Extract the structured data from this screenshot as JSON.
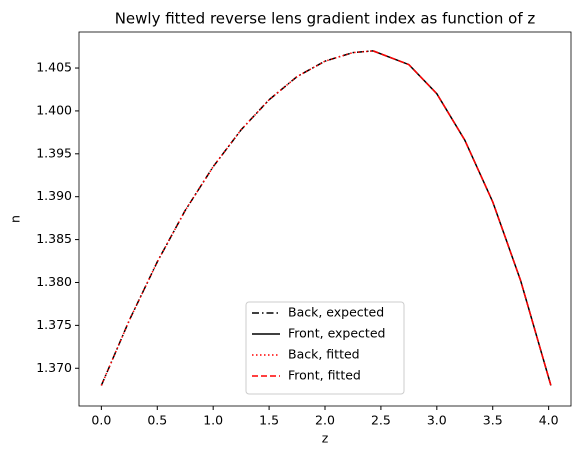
{
  "chart_data": {
    "type": "line",
    "title": "Newly fitted reverse lens gradient index as function of z",
    "xlabel": "z",
    "ylabel": "n",
    "xlim": [
      -0.2,
      4.2
    ],
    "ylim": [
      1.3656,
      1.4092
    ],
    "xticks": [
      {
        "value": 0,
        "label": "0.0"
      },
      {
        "value": 0.5,
        "label": "0.5"
      },
      {
        "value": 1,
        "label": "1.0"
      },
      {
        "value": 1.5,
        "label": "1.5"
      },
      {
        "value": 2,
        "label": "2.0"
      },
      {
        "value": 2.5,
        "label": "2.5"
      },
      {
        "value": 3,
        "label": "3.0"
      },
      {
        "value": 3.5,
        "label": "3.5"
      },
      {
        "value": 4,
        "label": "4.0"
      }
    ],
    "yticks": [
      {
        "value": 1.37,
        "label": "1.370"
      },
      {
        "value": 1.375,
        "label": "1.375"
      },
      {
        "value": 1.38,
        "label": "1.380"
      },
      {
        "value": 1.385,
        "label": "1.385"
      },
      {
        "value": 1.39,
        "label": "1.390"
      },
      {
        "value": 1.395,
        "label": "1.395"
      },
      {
        "value": 1.4,
        "label": "1.400"
      },
      {
        "value": 1.405,
        "label": "1.405"
      }
    ],
    "legend": "lower center",
    "series": [
      {
        "name": "Back, expected",
        "color": "#000000",
        "linestyle": "dashdot",
        "x": [
          0,
          0.25,
          0.5,
          0.75,
          1.0,
          1.25,
          1.5,
          1.75,
          2.0,
          2.25,
          2.43
        ],
        "values": [
          1.368,
          1.3756,
          1.3824,
          1.3884,
          1.3935,
          1.3978,
          1.4013,
          1.404,
          1.4058,
          1.4068,
          1.407
        ]
      },
      {
        "name": "Front, expected",
        "color": "#000000",
        "linestyle": "solid",
        "x": [
          2.43,
          2.75,
          3.0,
          3.25,
          3.5,
          3.75,
          4.02
        ],
        "values": [
          1.407,
          1.4054,
          1.402,
          1.3966,
          1.3894,
          1.3802,
          1.368
        ]
      },
      {
        "name": "Back, fitted",
        "color": "#ff0000",
        "linestyle": "dotted",
        "x": [
          0,
          0.25,
          0.5,
          0.75,
          1.0,
          1.25,
          1.5,
          1.75,
          2.0,
          2.25,
          2.43
        ],
        "values": [
          1.368,
          1.3756,
          1.3824,
          1.3884,
          1.3935,
          1.3978,
          1.4013,
          1.404,
          1.4058,
          1.4068,
          1.407
        ]
      },
      {
        "name": "Front, fitted",
        "color": "#ff0000",
        "linestyle": "dashed",
        "x": [
          2.43,
          2.75,
          3.0,
          3.25,
          3.5,
          3.75,
          4.02
        ],
        "values": [
          1.407,
          1.4054,
          1.402,
          1.3966,
          1.3894,
          1.3802,
          1.368
        ]
      }
    ]
  }
}
